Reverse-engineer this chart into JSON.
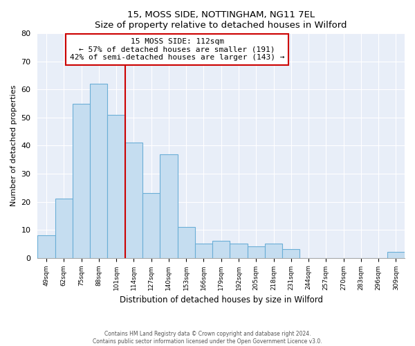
{
  "title": "15, MOSS SIDE, NOTTINGHAM, NG11 7EL",
  "subtitle": "Size of property relative to detached houses in Wilford",
  "xlabel": "Distribution of detached houses by size in Wilford",
  "ylabel": "Number of detached properties",
  "bar_color": "#c5ddf0",
  "bar_edge_color": "#6aaed6",
  "categories": [
    "49sqm",
    "62sqm",
    "75sqm",
    "88sqm",
    "101sqm",
    "114sqm",
    "127sqm",
    "140sqm",
    "153sqm",
    "166sqm",
    "179sqm",
    "192sqm",
    "205sqm",
    "218sqm",
    "231sqm",
    "244sqm",
    "257sqm",
    "270sqm",
    "283sqm",
    "296sqm",
    "309sqm"
  ],
  "values": [
    8,
    21,
    55,
    62,
    51,
    41,
    23,
    37,
    11,
    5,
    6,
    5,
    4,
    5,
    3,
    0,
    0,
    0,
    0,
    0,
    2
  ],
  "vline_color": "#cc0000",
  "vline_index": 5,
  "annotation_title": "15 MOSS SIDE: 112sqm",
  "annotation_line1": "← 57% of detached houses are smaller (191)",
  "annotation_line2": "42% of semi-detached houses are larger (143) →",
  "annotation_box_edgecolor": "#cc0000",
  "ylim": [
    0,
    80
  ],
  "yticks": [
    0,
    10,
    20,
    30,
    40,
    50,
    60,
    70,
    80
  ],
  "bg_color": "#e8eef8",
  "grid_color": "#ffffff",
  "footnote1": "Contains HM Land Registry data © Crown copyright and database right 2024.",
  "footnote2": "Contains public sector information licensed under the Open Government Licence v3.0."
}
